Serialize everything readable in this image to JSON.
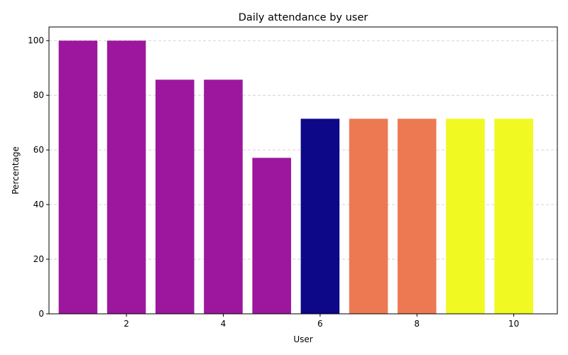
{
  "chart_data": {
    "type": "bar",
    "title": "Daily attendance by user",
    "xlabel": "User",
    "ylabel": "Percentage",
    "x": [
      1,
      2,
      3,
      4,
      5,
      6,
      7,
      8,
      9,
      10
    ],
    "values": [
      100,
      100,
      85.7,
      85.7,
      57.1,
      71.4,
      71.4,
      71.4,
      71.4,
      71.4
    ],
    "colors": [
      "#9c179e",
      "#9c179e",
      "#9c179e",
      "#9c179e",
      "#9c179e",
      "#0d0887",
      "#ed7953",
      "#ed7953",
      "#f0f921",
      "#f0f921"
    ],
    "xlim": [
      0.4,
      10.9
    ],
    "ylim": [
      0,
      105
    ],
    "xticks": [
      2,
      4,
      6,
      8,
      10
    ],
    "yticks": [
      0,
      20,
      40,
      60,
      80,
      100
    ],
    "grid": "y-dashed",
    "legend": "none"
  }
}
